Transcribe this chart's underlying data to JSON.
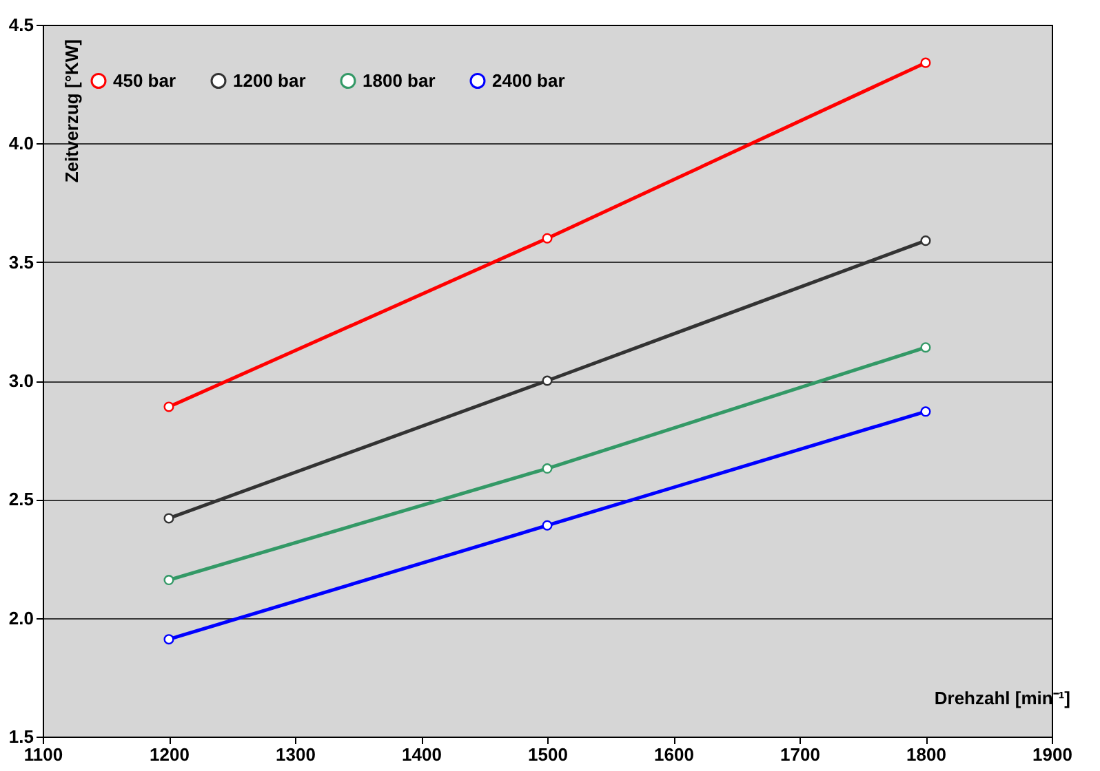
{
  "chart_data": {
    "type": "line",
    "xlabel": "Drehzahl [min⁻¹]",
    "ylabel": "Zeitverzug [°KW]",
    "x": [
      1200,
      1500,
      1800
    ],
    "series": [
      {
        "name": "450 bar",
        "color": "#ff0000",
        "values": [
          2.89,
          3.6,
          4.34
        ]
      },
      {
        "name": "1200 bar",
        "color": "#333333",
        "values": [
          2.42,
          3.0,
          3.59
        ]
      },
      {
        "name": "1800 bar",
        "color": "#339966",
        "values": [
          2.16,
          2.63,
          3.14
        ]
      },
      {
        "name": "2400 bar",
        "color": "#0000ff",
        "values": [
          1.91,
          2.39,
          2.87
        ]
      }
    ],
    "xlim": [
      1100,
      1900
    ],
    "xticks": [
      1100,
      1200,
      1300,
      1400,
      1500,
      1600,
      1700,
      1800,
      1900
    ],
    "ylim": [
      1.5,
      4.5
    ],
    "yticks": [
      1.5,
      {
        "value": 2,
        "label": "2.0"
      },
      2.5,
      {
        "value": 3,
        "label": "3.0"
      },
      3.5,
      {
        "value": 4,
        "label": "4.0"
      },
      4.5
    ],
    "grid": "y",
    "legend": "top left",
    "marker": "circle",
    "line_style": "solid"
  }
}
